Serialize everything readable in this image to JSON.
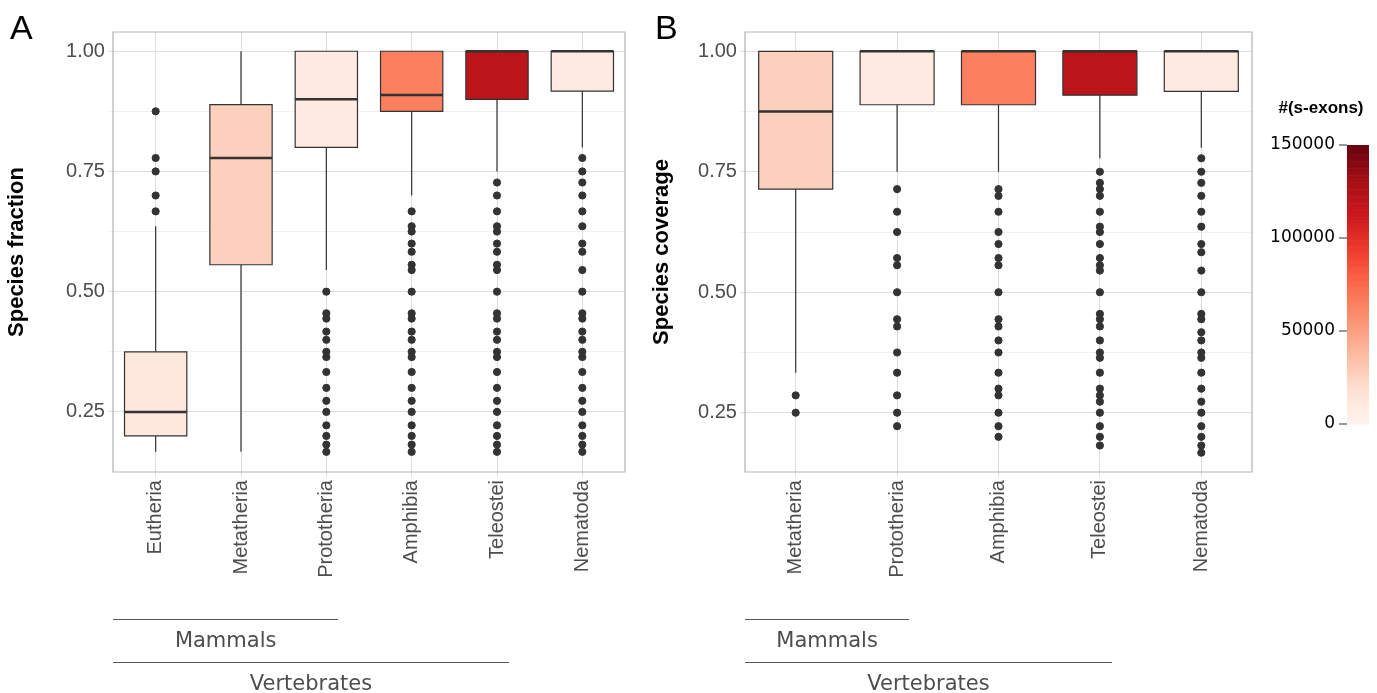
{
  "chart_data": [
    {
      "type": "box",
      "title": "A",
      "ylabel": "Species fraction",
      "categories": [
        "Eutheria",
        "Metatheria",
        "Prototheria",
        "Amphibia",
        "Teleostei",
        "Nematoda"
      ],
      "colors": [
        "#fee8dd",
        "#fcd0bd",
        "#feeae0",
        "#fc8060",
        "#bb151a",
        "#feeae0"
      ],
      "boxes": [
        {
          "low": 0.167,
          "q1": 0.2,
          "median": 0.25,
          "q3": 0.375,
          "high": 0.636,
          "outliers": [
            0.875,
            0.778,
            0.75,
            0.7,
            0.667
          ]
        },
        {
          "low": 0.167,
          "q1": 0.556,
          "median": 0.778,
          "q3": 0.889,
          "high": 1.0
        },
        {
          "low": 0.545,
          "q1": 0.8,
          "median": 0.9,
          "q3": 1.0,
          "high": 1.0,
          "outliers": [
            0.5,
            0.455,
            0.444,
            0.417,
            0.4,
            0.375,
            0.364,
            0.333,
            0.3,
            0.273,
            0.25,
            0.222,
            0.2,
            0.182,
            0.167
          ]
        },
        {
          "low": 0.7,
          "q1": 0.875,
          "median": 0.909,
          "q3": 1.0,
          "high": 1.0,
          "outliers": [
            0.667,
            0.636,
            0.625,
            0.6,
            0.583,
            0.556,
            0.545,
            0.5,
            0.455,
            0.444,
            0.417,
            0.4,
            0.375,
            0.364,
            0.333,
            0.3,
            0.273,
            0.25,
            0.222,
            0.2,
            0.182,
            0.167
          ]
        },
        {
          "low": 0.75,
          "q1": 0.9,
          "median": 1.0,
          "q3": 1.0,
          "high": 1.0,
          "outliers": [
            0.727,
            0.7,
            0.667,
            0.636,
            0.625,
            0.6,
            0.583,
            0.556,
            0.545,
            0.5,
            0.455,
            0.444,
            0.417,
            0.4,
            0.375,
            0.364,
            0.333,
            0.3,
            0.273,
            0.25,
            0.222,
            0.2,
            0.182,
            0.167
          ]
        },
        {
          "low": 0.8,
          "q1": 0.917,
          "median": 1.0,
          "q3": 1.0,
          "high": 1.0,
          "outliers": [
            0.778,
            0.75,
            0.727,
            0.7,
            0.667,
            0.636,
            0.6,
            0.583,
            0.545,
            0.5,
            0.455,
            0.444,
            0.417,
            0.4,
            0.375,
            0.364,
            0.333,
            0.3,
            0.273,
            0.25,
            0.222,
            0.2,
            0.182,
            0.167
          ]
        }
      ],
      "ylim": [
        0.125,
        1.04
      ],
      "yticks": [
        {
          "value": 0.25,
          "label": "0.25"
        },
        {
          "value": 0.375,
          "label": null
        },
        {
          "value": 0.5,
          "label": "0.50"
        },
        {
          "value": 0.625,
          "label": null
        },
        {
          "value": 0.75,
          "label": "0.75"
        },
        {
          "value": 0.875,
          "label": null
        },
        {
          "value": 1.0,
          "label": "1.00"
        }
      ],
      "grid": true,
      "legend": false,
      "annotations": [
        "Mammals",
        "Vertebrates"
      ]
    },
    {
      "type": "box",
      "title": "B",
      "ylabel": "Species coverage",
      "categories": [
        "Metatheria",
        "Prototheria",
        "Amphibia",
        "Teleostei",
        "Nematoda"
      ],
      "colors": [
        "#fcd0bd",
        "#feeae0",
        "#fc8060",
        "#bb151a",
        "#feeae0"
      ],
      "boxes": [
        {
          "low": 0.333,
          "q1": 0.714,
          "median": 0.875,
          "q3": 1.0,
          "high": 1.0,
          "outliers": [
            0.286,
            0.25
          ]
        },
        {
          "low": 0.75,
          "q1": 0.889,
          "median": 1.0,
          "q3": 1.0,
          "high": 1.0,
          "outliers": [
            0.714,
            0.667,
            0.625,
            0.571,
            0.556,
            0.5,
            0.444,
            0.429,
            0.375,
            0.333,
            0.286,
            0.25,
            0.222
          ]
        },
        {
          "low": 0.75,
          "q1": 0.889,
          "median": 1.0,
          "q3": 1.0,
          "high": 1.0,
          "outliers": [
            0.714,
            0.7,
            0.667,
            0.625,
            0.6,
            0.571,
            0.556,
            0.5,
            0.444,
            0.429,
            0.4,
            0.375,
            0.333,
            0.3,
            0.286,
            0.25,
            0.222,
            0.2
          ]
        },
        {
          "low": 0.778,
          "q1": 0.909,
          "median": 1.0,
          "q3": 1.0,
          "high": 1.0,
          "outliers": [
            0.75,
            0.727,
            0.714,
            0.7,
            0.667,
            0.636,
            0.625,
            0.6,
            0.571,
            0.556,
            0.545,
            0.5,
            0.455,
            0.444,
            0.429,
            0.4,
            0.375,
            0.364,
            0.333,
            0.3,
            0.286,
            0.273,
            0.25,
            0.222,
            0.2,
            0.182
          ]
        },
        {
          "low": 0.8,
          "q1": 0.917,
          "median": 1.0,
          "q3": 1.0,
          "high": 1.0,
          "outliers": [
            0.778,
            0.75,
            0.727,
            0.7,
            0.667,
            0.636,
            0.6,
            0.583,
            0.545,
            0.5,
            0.455,
            0.444,
            0.417,
            0.4,
            0.375,
            0.364,
            0.333,
            0.3,
            0.273,
            0.25,
            0.222,
            0.2,
            0.182,
            0.167
          ]
        }
      ],
      "ylim": [
        0.127,
        1.04
      ],
      "yticks": [
        {
          "value": 0.25,
          "label": "0.25"
        },
        {
          "value": 0.375,
          "label": null
        },
        {
          "value": 0.5,
          "label": "0.50"
        },
        {
          "value": 0.625,
          "label": null
        },
        {
          "value": 0.75,
          "label": "0.75"
        },
        {
          "value": 0.875,
          "label": null
        },
        {
          "value": 1.0,
          "label": "1.00"
        }
      ],
      "grid": true,
      "legend": false,
      "clabel": "#(s-exons)",
      "clim": [
        0,
        150000
      ],
      "cticks": [
        0,
        50000,
        100000,
        150000
      ],
      "annotations": [
        "Mammals",
        "Vertebrates"
      ]
    }
  ]
}
